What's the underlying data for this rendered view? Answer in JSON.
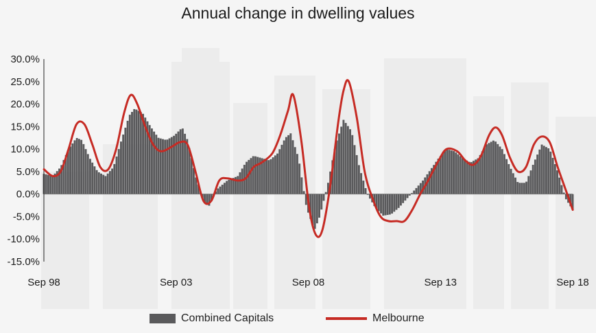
{
  "title": "Annual change in dwelling values",
  "colors": {
    "bars": "#5a5a5c",
    "line": "#c62b24",
    "axis": "#222222"
  },
  "legend": {
    "bars_label": "Combined Capitals",
    "line_label": "Melbourne"
  },
  "chart_data": {
    "type": "bar",
    "title": "Annual change in dwelling values",
    "ylim": [
      -15,
      30
    ],
    "yticks": [
      -15,
      -10,
      -5,
      0,
      5,
      10,
      15,
      20,
      25,
      30
    ],
    "ytick_labels": [
      "-15.0%",
      "-10.0%",
      "-5.0%",
      "0.0%",
      "5.0%",
      "10.0%",
      "15.0%",
      "20.0%",
      "25.0%",
      "30.0%"
    ],
    "xtick_labels": [
      "Sep 98",
      "Sep 03",
      "Sep 08",
      "Sep 13",
      "Sep 18"
    ],
    "x_range": [
      1998.667,
      2018.667
    ],
    "grid": false,
    "legend_position": "bottom",
    "series": [
      {
        "name": "Combined Capitals",
        "type": "bar",
        "points": [
          [
            1998.67,
            4.5
          ],
          [
            1999.0,
            4.0
          ],
          [
            1999.3,
            6.0
          ],
          [
            1999.6,
            10.0
          ],
          [
            1999.9,
            12.5
          ],
          [
            2000.1,
            12.0
          ],
          [
            2000.4,
            8.0
          ],
          [
            2000.7,
            5.0
          ],
          [
            2001.0,
            4.0
          ],
          [
            2001.3,
            6.0
          ],
          [
            2001.6,
            12.0
          ],
          [
            2001.9,
            17.5
          ],
          [
            2002.1,
            19.0
          ],
          [
            2002.4,
            18.0
          ],
          [
            2002.7,
            15.0
          ],
          [
            2003.0,
            12.5
          ],
          [
            2003.3,
            12.0
          ],
          [
            2003.6,
            13.0
          ],
          [
            2003.9,
            14.8
          ],
          [
            2004.1,
            12.0
          ],
          [
            2004.4,
            4.0
          ],
          [
            2004.7,
            -1.5
          ],
          [
            2004.9,
            -2.8
          ],
          [
            2005.2,
            1.0
          ],
          [
            2005.6,
            3.0
          ],
          [
            2006.0,
            4.0
          ],
          [
            2006.3,
            7.0
          ],
          [
            2006.6,
            8.5
          ],
          [
            2006.9,
            8.0
          ],
          [
            2007.2,
            7.5
          ],
          [
            2007.5,
            9.0
          ],
          [
            2007.8,
            12.5
          ],
          [
            2008.0,
            13.5
          ],
          [
            2008.3,
            8.0
          ],
          [
            2008.6,
            -3.0
          ],
          [
            2008.9,
            -8.0
          ],
          [
            2009.1,
            -5.0
          ],
          [
            2009.4,
            2.0
          ],
          [
            2009.7,
            11.0
          ],
          [
            2010.0,
            16.5
          ],
          [
            2010.3,
            14.0
          ],
          [
            2010.6,
            6.0
          ],
          [
            2010.9,
            0.0
          ],
          [
            2011.2,
            -3.0
          ],
          [
            2011.5,
            -4.8
          ],
          [
            2011.8,
            -4.5
          ],
          [
            2012.1,
            -3.0
          ],
          [
            2012.4,
            -1.0
          ],
          [
            2012.7,
            1.0
          ],
          [
            2013.0,
            3.0
          ],
          [
            2013.3,
            5.5
          ],
          [
            2013.6,
            8.0
          ],
          [
            2013.9,
            10.0
          ],
          [
            2014.2,
            9.5
          ],
          [
            2014.5,
            8.0
          ],
          [
            2014.8,
            7.0
          ],
          [
            2015.1,
            8.0
          ],
          [
            2015.4,
            11.0
          ],
          [
            2015.7,
            12.0
          ],
          [
            2016.0,
            10.0
          ],
          [
            2016.3,
            6.0
          ],
          [
            2016.6,
            2.5
          ],
          [
            2016.9,
            2.5
          ],
          [
            2017.2,
            7.0
          ],
          [
            2017.5,
            11.0
          ],
          [
            2017.8,
            10.0
          ],
          [
            2018.1,
            5.0
          ],
          [
            2018.4,
            -1.0
          ],
          [
            2018.67,
            -3.5
          ]
        ]
      },
      {
        "name": "Melbourne",
        "type": "line",
        "points": [
          [
            1998.67,
            5.5
          ],
          [
            1999.0,
            4.0
          ],
          [
            1999.3,
            5.0
          ],
          [
            1999.6,
            10.0
          ],
          [
            1999.9,
            15.5
          ],
          [
            2000.2,
            15.5
          ],
          [
            2000.5,
            11.0
          ],
          [
            2000.8,
            6.0
          ],
          [
            2001.1,
            5.5
          ],
          [
            2001.4,
            10.0
          ],
          [
            2001.7,
            18.0
          ],
          [
            2001.95,
            22.0
          ],
          [
            2002.2,
            20.0
          ],
          [
            2002.5,
            15.0
          ],
          [
            2002.8,
            11.0
          ],
          [
            2003.1,
            9.5
          ],
          [
            2003.5,
            10.5
          ],
          [
            2003.8,
            11.5
          ],
          [
            2004.1,
            11.0
          ],
          [
            2004.4,
            5.0
          ],
          [
            2004.7,
            -1.5
          ],
          [
            2005.0,
            -1.5
          ],
          [
            2005.3,
            3.0
          ],
          [
            2005.6,
            3.5
          ],
          [
            2006.0,
            3.0
          ],
          [
            2006.3,
            3.5
          ],
          [
            2006.6,
            6.0
          ],
          [
            2006.9,
            7.0
          ],
          [
            2007.3,
            9.0
          ],
          [
            2007.6,
            13.0
          ],
          [
            2007.9,
            18.5
          ],
          [
            2008.1,
            22.0
          ],
          [
            2008.4,
            12.0
          ],
          [
            2008.7,
            -3.0
          ],
          [
            2008.95,
            -9.0
          ],
          [
            2009.2,
            -8.0
          ],
          [
            2009.5,
            2.0
          ],
          [
            2009.8,
            16.0
          ],
          [
            2010.0,
            23.0
          ],
          [
            2010.2,
            25.0
          ],
          [
            2010.5,
            17.0
          ],
          [
            2010.8,
            5.0
          ],
          [
            2011.1,
            -1.0
          ],
          [
            2011.4,
            -5.0
          ],
          [
            2011.7,
            -6.0
          ],
          [
            2012.0,
            -6.0
          ],
          [
            2012.3,
            -6.0
          ],
          [
            2012.6,
            -3.5
          ],
          [
            2012.9,
            0.0
          ],
          [
            2013.2,
            3.0
          ],
          [
            2013.6,
            7.5
          ],
          [
            2013.9,
            10.0
          ],
          [
            2014.3,
            9.5
          ],
          [
            2014.6,
            7.5
          ],
          [
            2014.9,
            6.5
          ],
          [
            2015.2,
            8.5
          ],
          [
            2015.5,
            13.0
          ],
          [
            2015.75,
            14.8
          ],
          [
            2016.0,
            13.0
          ],
          [
            2016.3,
            8.0
          ],
          [
            2016.6,
            5.0
          ],
          [
            2016.9,
            6.0
          ],
          [
            2017.2,
            11.0
          ],
          [
            2017.5,
            12.8
          ],
          [
            2017.8,
            11.5
          ],
          [
            2018.1,
            6.0
          ],
          [
            2018.4,
            1.0
          ],
          [
            2018.67,
            -3.5
          ]
        ]
      }
    ]
  }
}
